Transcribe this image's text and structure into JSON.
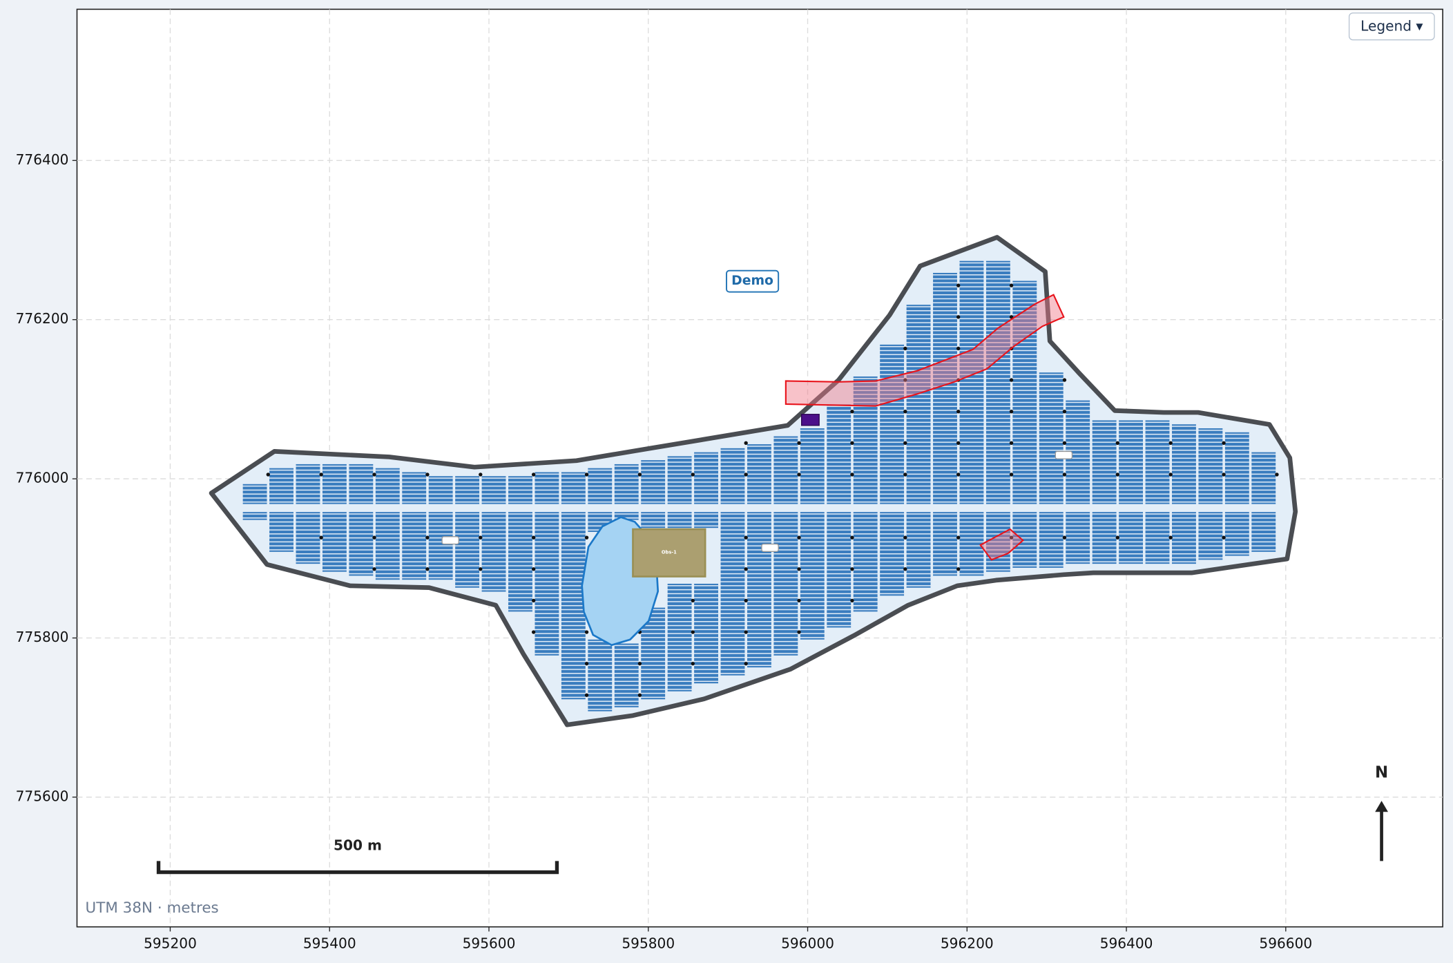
{
  "map": {
    "xlim": [
      595083,
      596797
    ],
    "ylim": [
      775437,
      776590
    ],
    "xticks": [
      595200,
      595400,
      595600,
      595800,
      596000,
      596200,
      596400,
      596600
    ],
    "yticks": [
      775600,
      775800,
      776000,
      776200,
      776400
    ],
    "grid": true,
    "legend_button": "Legend ▾",
    "site_label": "Demo",
    "obstacle_label": "Obs-1",
    "scale_bar": {
      "length": 500,
      "label": "500 m"
    },
    "north_label": "N",
    "crs_note": "UTM 38N · metres"
  }
}
